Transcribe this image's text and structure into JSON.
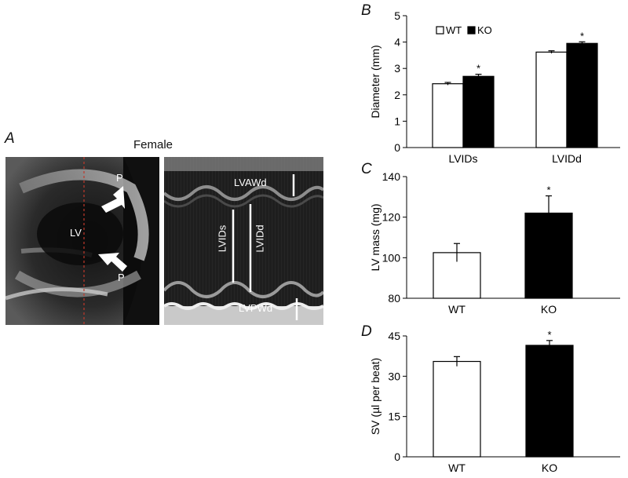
{
  "panel_a": {
    "letter": "A",
    "title": "Female",
    "bmode_labels": {
      "lv": "LV",
      "p_top": "P",
      "p_bottom": "P"
    },
    "mmode_labels": {
      "lvawd": "LVAWd",
      "lvids": "LVIDs",
      "lvidd": "LVIDd",
      "lvpwd": "LVPWd"
    }
  },
  "colors": {
    "wt": "#ffffff",
    "ko": "#000000",
    "stroke": "#000000",
    "echo_bg": "#1a1a1a",
    "guide_line": "#c0392b"
  },
  "chart_data": [
    {
      "panel": "B",
      "type": "bar",
      "categories": [
        "LVIDs",
        "LVIDd"
      ],
      "ylabel": "Diameter (mm)",
      "ylim": [
        0,
        5
      ],
      "yticks": [
        "0",
        "1",
        "2",
        "3",
        "4",
        "5"
      ],
      "legend": [
        "WT",
        "KO"
      ],
      "legend_position": "top-left",
      "series": [
        {
          "name": "WT",
          "values": [
            2.42,
            3.62
          ],
          "errors": [
            0.05,
            0.05
          ]
        },
        {
          "name": "KO",
          "values": [
            2.7,
            3.95
          ],
          "errors": [
            0.08,
            0.06
          ]
        }
      ],
      "significance": [
        "*",
        "*"
      ]
    },
    {
      "panel": "C",
      "type": "bar",
      "categories": [
        "WT",
        "KO"
      ],
      "ylabel": "LV mass (mg)",
      "ylim": [
        80,
        140
      ],
      "yticks": [
        "80",
        "100",
        "120",
        "140"
      ],
      "series": [
        {
          "values": [
            102.5,
            122
          ],
          "errors": [
            4.5,
            8.5
          ]
        }
      ],
      "significance": [
        "",
        "*"
      ]
    },
    {
      "panel": "D",
      "type": "bar",
      "categories": [
        "WT",
        "KO"
      ],
      "ylabel": "SV (µl per beat)",
      "ylim": [
        0,
        45
      ],
      "yticks": [
        "0",
        "15",
        "30",
        "45"
      ],
      "series": [
        {
          "values": [
            35.5,
            41.5
          ],
          "errors": [
            1.8,
            1.8
          ]
        }
      ],
      "significance": [
        "",
        "*"
      ]
    }
  ]
}
